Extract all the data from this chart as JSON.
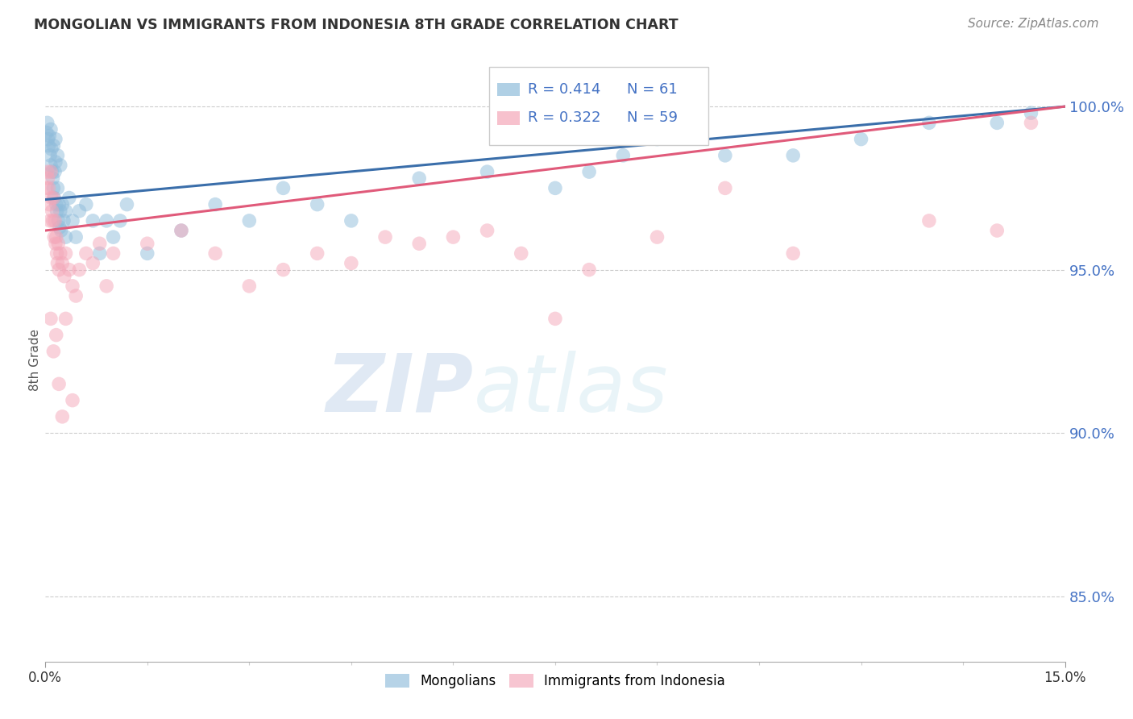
{
  "title": "MONGOLIAN VS IMMIGRANTS FROM INDONESIA 8TH GRADE CORRELATION CHART",
  "source": "Source: ZipAtlas.com",
  "ylabel": "8th Grade",
  "xlim": [
    0.0,
    15.0
  ],
  "ylim": [
    83.0,
    101.5
  ],
  "yticks": [
    85.0,
    90.0,
    95.0,
    100.0
  ],
  "ytick_labels": [
    "85.0%",
    "90.0%",
    "95.0%",
    "100.0%"
  ],
  "blue_color": "#8fbcdb",
  "pink_color": "#f4a7b9",
  "blue_line_color": "#3a6eaa",
  "pink_line_color": "#e05a7a",
  "blue_R": 0.414,
  "blue_N": 61,
  "pink_R": 0.322,
  "pink_N": 59,
  "blue_x": [
    0.02,
    0.03,
    0.04,
    0.05,
    0.06,
    0.07,
    0.08,
    0.09,
    0.1,
    0.11,
    0.12,
    0.13,
    0.14,
    0.15,
    0.16,
    0.17,
    0.18,
    0.19,
    0.2,
    0.21,
    0.22,
    0.23,
    0.25,
    0.27,
    0.3,
    0.35,
    0.4,
    0.45,
    0.5,
    0.6,
    0.7,
    0.8,
    0.9,
    1.0,
    1.1,
    1.2,
    1.5,
    2.0,
    2.5,
    3.0,
    3.5,
    4.0,
    4.5,
    5.5,
    6.5,
    7.5,
    8.0,
    8.5,
    9.0,
    10.0,
    11.0,
    12.0,
    13.0,
    14.0,
    14.5,
    0.08,
    0.12,
    0.15,
    0.18,
    0.22,
    0.3
  ],
  "blue_y": [
    99.2,
    99.5,
    99.0,
    98.8,
    99.1,
    98.5,
    98.2,
    98.7,
    98.0,
    97.8,
    97.5,
    97.2,
    98.0,
    98.3,
    97.0,
    96.8,
    97.5,
    96.5,
    97.0,
    96.3,
    96.8,
    96.2,
    97.0,
    96.5,
    96.8,
    97.2,
    96.5,
    96.0,
    96.8,
    97.0,
    96.5,
    95.5,
    96.5,
    96.0,
    96.5,
    97.0,
    95.5,
    96.2,
    97.0,
    96.5,
    97.5,
    97.0,
    96.5,
    97.8,
    98.0,
    97.5,
    98.0,
    98.5,
    99.0,
    98.5,
    98.5,
    99.0,
    99.5,
    99.5,
    99.8,
    99.3,
    98.8,
    99.0,
    98.5,
    98.2,
    96.0
  ],
  "pink_x": [
    0.02,
    0.03,
    0.04,
    0.05,
    0.06,
    0.07,
    0.08,
    0.09,
    0.1,
    0.11,
    0.12,
    0.13,
    0.14,
    0.15,
    0.16,
    0.17,
    0.18,
    0.19,
    0.2,
    0.22,
    0.25,
    0.28,
    0.3,
    0.35,
    0.4,
    0.45,
    0.5,
    0.6,
    0.7,
    0.8,
    0.9,
    1.0,
    1.5,
    2.0,
    2.5,
    3.0,
    3.5,
    4.0,
    4.5,
    5.0,
    5.5,
    6.0,
    6.5,
    7.0,
    7.5,
    8.0,
    9.0,
    10.0,
    11.0,
    13.0,
    14.0,
    14.5,
    0.08,
    0.12,
    0.16,
    0.2,
    0.25,
    0.3,
    0.4
  ],
  "pink_y": [
    97.5,
    98.0,
    97.8,
    97.5,
    97.0,
    96.5,
    98.0,
    97.2,
    96.8,
    96.5,
    97.2,
    96.0,
    96.5,
    95.8,
    96.0,
    95.5,
    95.2,
    95.8,
    95.0,
    95.5,
    95.2,
    94.8,
    95.5,
    95.0,
    94.5,
    94.2,
    95.0,
    95.5,
    95.2,
    95.8,
    94.5,
    95.5,
    95.8,
    96.2,
    95.5,
    94.5,
    95.0,
    95.5,
    95.2,
    96.0,
    95.8,
    96.0,
    96.2,
    95.5,
    93.5,
    95.0,
    96.0,
    97.5,
    95.5,
    96.5,
    96.2,
    99.5,
    93.5,
    92.5,
    93.0,
    91.5,
    90.5,
    93.5,
    91.0
  ]
}
